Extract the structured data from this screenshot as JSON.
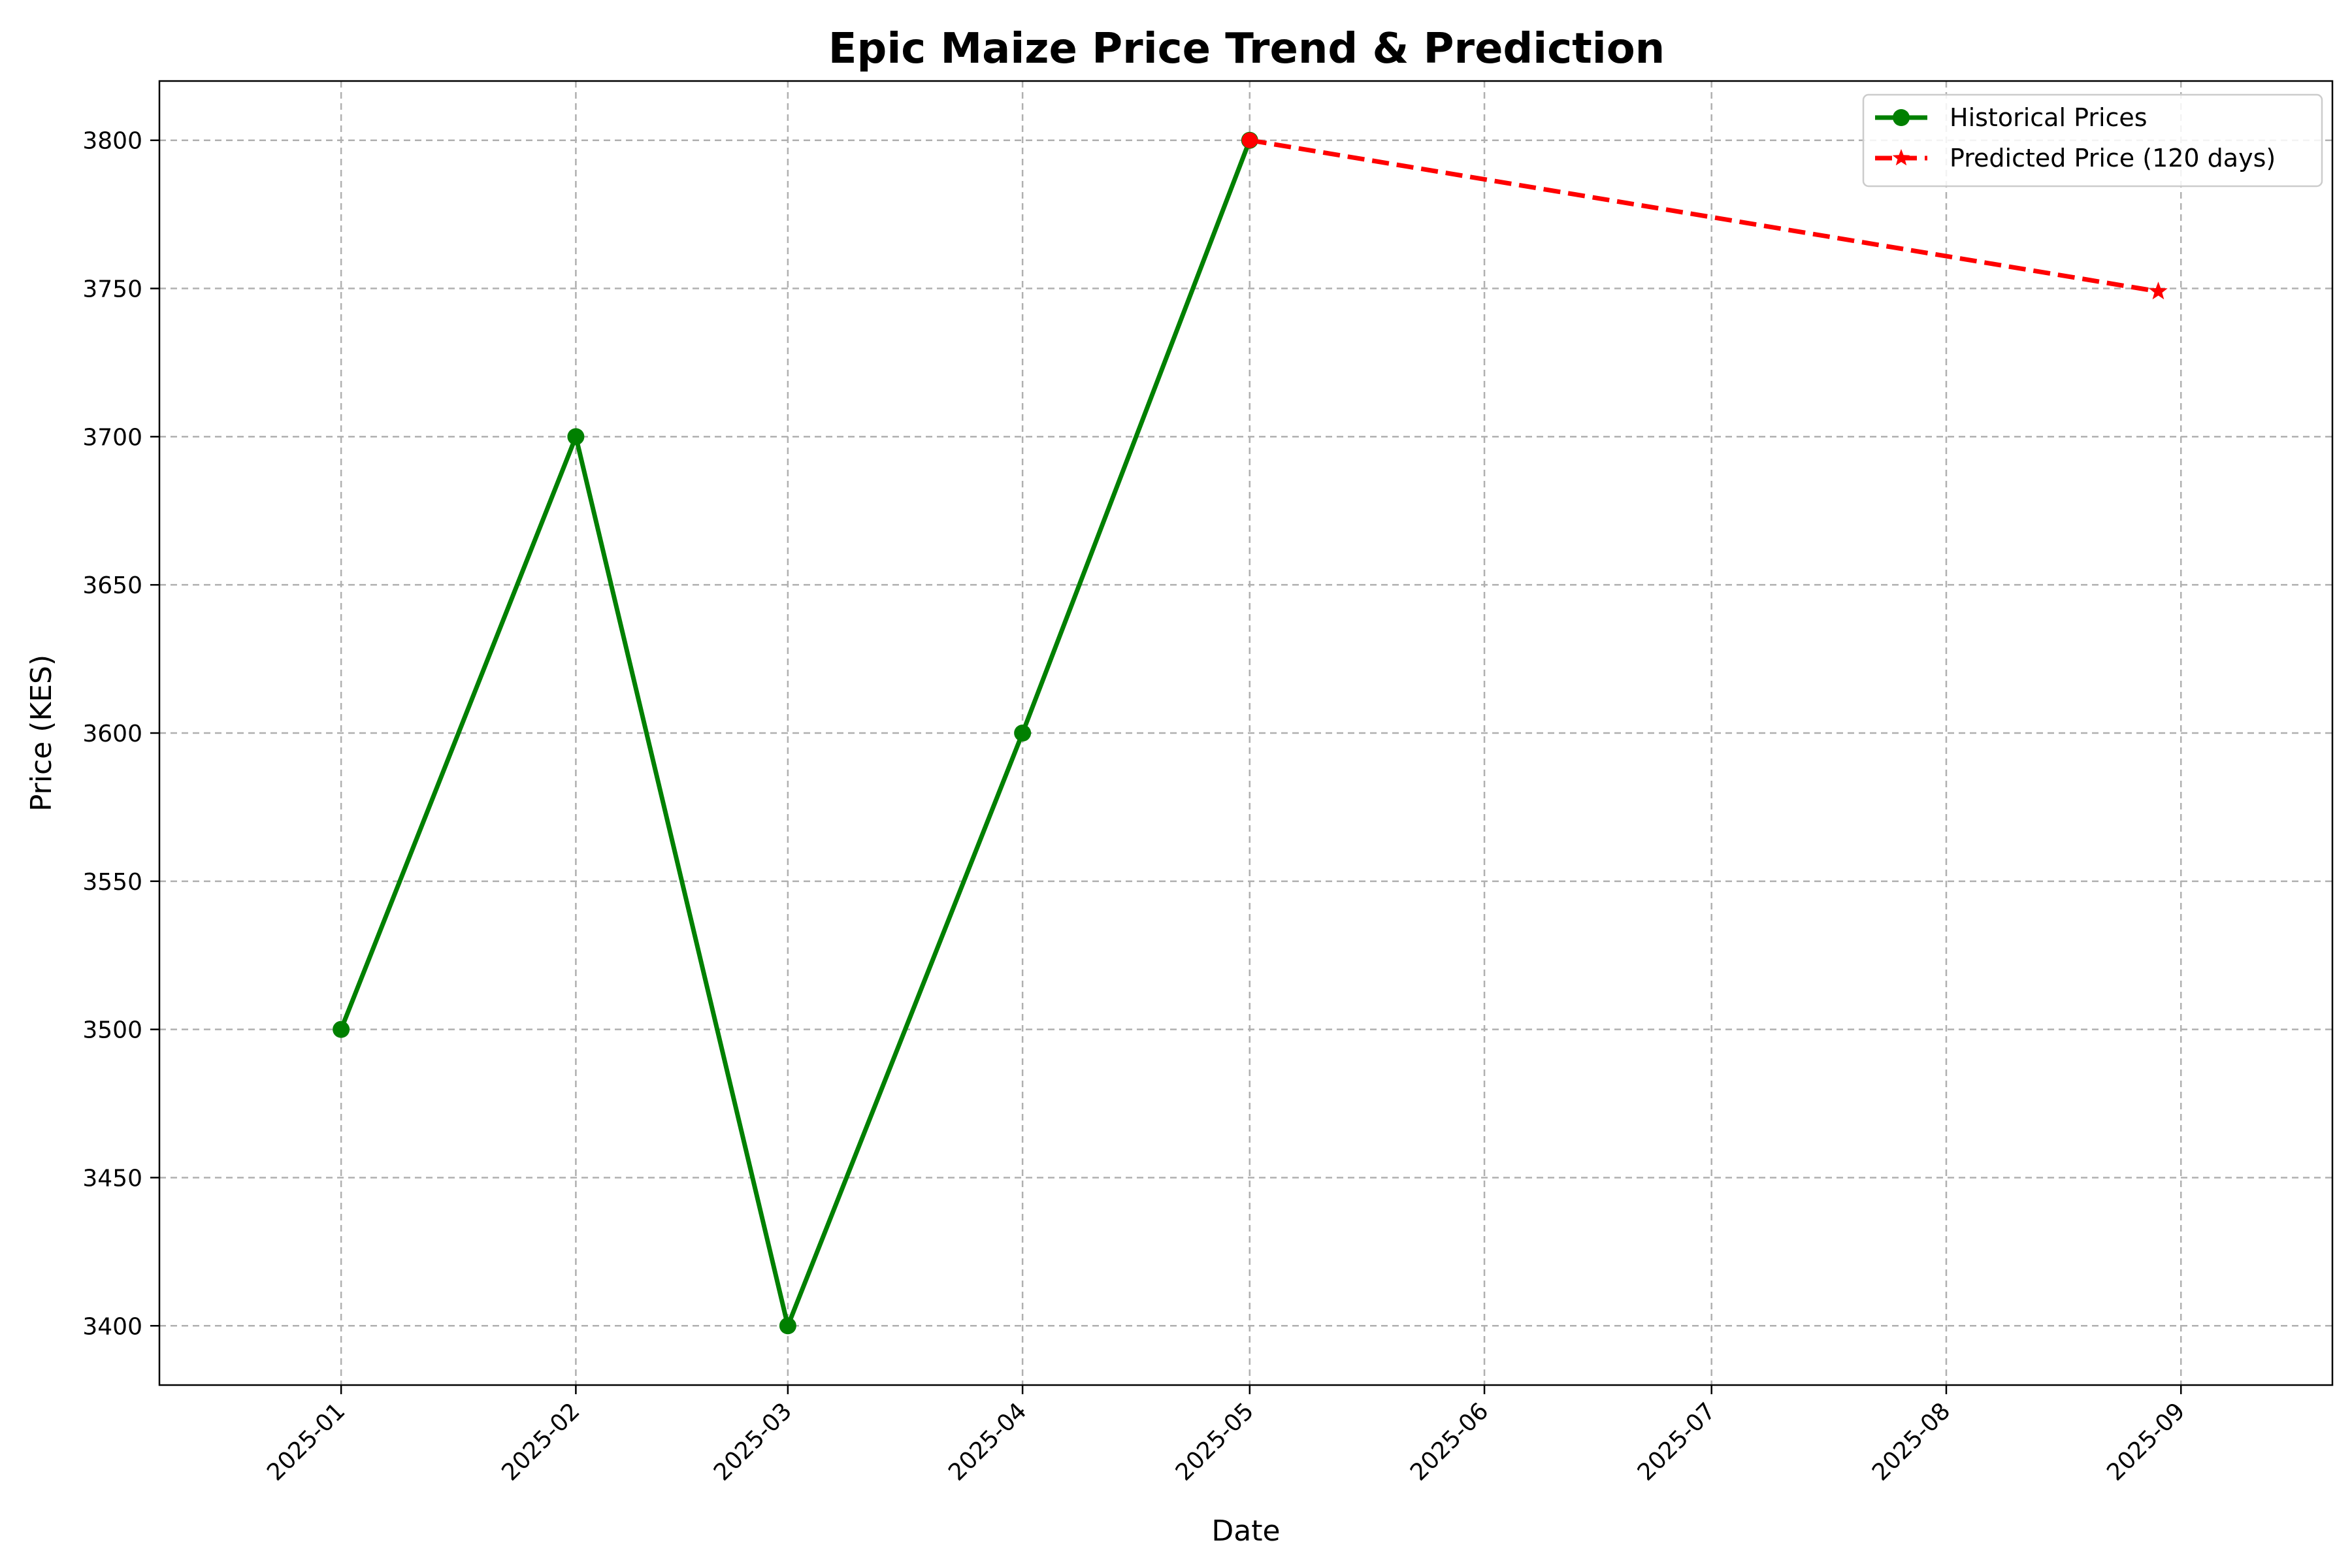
{
  "chart_data": {
    "type": "line",
    "title": "Epic Maize Price Trend & Prediction",
    "xlabel": "Date",
    "ylabel": "Price (KES)",
    "x_type": "date",
    "xlim": [
      "2024-12-08",
      "2025-09-21"
    ],
    "ylim": [
      3380,
      3820
    ],
    "grid": true,
    "legend_position": "top-right",
    "x_ticks": [
      "2025-01",
      "2025-02",
      "2025-03",
      "2025-04",
      "2025-05",
      "2025-06",
      "2025-07",
      "2025-08",
      "2025-09"
    ],
    "y_ticks": [
      3400,
      3450,
      3500,
      3550,
      3600,
      3650,
      3700,
      3750,
      3800
    ],
    "series": [
      {
        "name": "Historical Prices",
        "color": "#008000",
        "line_style": "solid",
        "marker": "circle",
        "x": [
          "2025-01-01",
          "2025-02-01",
          "2025-03-01",
          "2025-04-01",
          "2025-05-01"
        ],
        "y": [
          3500,
          3700,
          3400,
          3600,
          3800
        ]
      },
      {
        "name": "Predicted Price (120 days)",
        "color": "#ff0000",
        "line_style": "dashed",
        "marker": "star",
        "marker_visible": [
          false,
          true
        ],
        "x": [
          "2025-05-01",
          "2025-08-29"
        ],
        "y": [
          3800,
          3749
        ]
      }
    ]
  }
}
